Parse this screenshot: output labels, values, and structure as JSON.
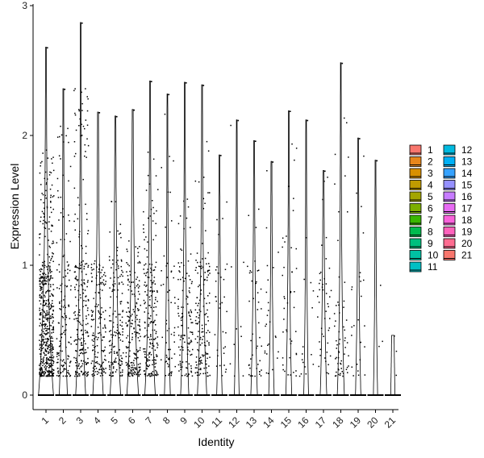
{
  "chart_data": {
    "type": "violin",
    "title": "",
    "xlabel": "Identity",
    "ylabel": "Expression Level",
    "ylim": [
      -0.15,
      3.0
    ],
    "yticks": [
      0,
      1,
      2,
      3
    ],
    "grid": false,
    "legend_position": "right",
    "categories": [
      "1",
      "2",
      "3",
      "4",
      "5",
      "6",
      "7",
      "8",
      "9",
      "10",
      "11",
      "12",
      "13",
      "14",
      "15",
      "16",
      "17",
      "18",
      "19",
      "20",
      "21"
    ],
    "colors": [
      "#F8766D",
      "#E58700",
      "#C99800",
      "#A3A500",
      "#6BB100",
      "#00BA38",
      "#00BF7D",
      "#00C0AF",
      "#00BCD8",
      "#00B0F6",
      "#619CFF",
      "#B983FF",
      "#E76BF3",
      "#FD61D1",
      "#FF67A4",
      "#F8766D",
      "#E58700",
      "#C99800",
      "#A3A500",
      "#6BB100",
      "#00BA38"
    ],
    "legend_colors": [
      "#F8766D",
      "#E7861B",
      "#D89000",
      "#C09B00",
      "#A3A500",
      "#7CAE00",
      "#39B600",
      "#00BB4E",
      "#00BF7D",
      "#00C1A3",
      "#00BFC4",
      "#00BAE0",
      "#00B0F6",
      "#35A2FF",
      "#9590FF",
      "#C77CFF",
      "#E76BF3",
      "#FA62DB",
      "#FF62BC",
      "#FF6C91",
      "#F8766D"
    ],
    "series": [
      {
        "name": "1",
        "max": 2.68,
        "density": 1.0,
        "upper_top": 1.9,
        "cells": 520
      },
      {
        "name": "2",
        "max": 2.36,
        "density": 0.4,
        "upper_top": 2.1,
        "cells": 150
      },
      {
        "name": "3",
        "max": 2.87,
        "density": 0.55,
        "upper_top": 2.4,
        "cells": 230
      },
      {
        "name": "4",
        "max": 2.18,
        "density": 0.6,
        "upper_top": 1.0,
        "cells": 150
      },
      {
        "name": "5",
        "max": 2.15,
        "density": 0.6,
        "upper_top": 1.5,
        "cells": 160
      },
      {
        "name": "6",
        "max": 2.2,
        "density": 0.7,
        "upper_top": 1.2,
        "cells": 190
      },
      {
        "name": "7",
        "max": 2.42,
        "density": 0.6,
        "upper_top": 1.9,
        "cells": 200
      },
      {
        "name": "8",
        "max": 2.32,
        "density": 0.2,
        "upper_top": 2.3,
        "cells": 60
      },
      {
        "name": "9",
        "max": 2.41,
        "density": 0.4,
        "upper_top": 1.6,
        "cells": 120
      },
      {
        "name": "10",
        "max": 2.39,
        "density": 0.5,
        "upper_top": 2.0,
        "cells": 150
      },
      {
        "name": "11",
        "max": 1.85,
        "density": 0.15,
        "upper_top": 1.8,
        "cells": 35
      },
      {
        "name": "12",
        "max": 2.12,
        "density": 0.1,
        "upper_top": 2.1,
        "cells": 10
      },
      {
        "name": "13",
        "max": 1.96,
        "density": 0.25,
        "upper_top": 1.5,
        "cells": 45
      },
      {
        "name": "14",
        "max": 1.8,
        "density": 0.15,
        "upper_top": 1.8,
        "cells": 25
      },
      {
        "name": "15",
        "max": 2.19,
        "density": 0.2,
        "upper_top": 2.2,
        "cells": 45
      },
      {
        "name": "16",
        "max": 2.12,
        "density": 0.1,
        "upper_top": 2.1,
        "cells": 15
      },
      {
        "name": "17",
        "max": 1.73,
        "density": 0.25,
        "upper_top": 1.7,
        "cells": 45
      },
      {
        "name": "18",
        "max": 2.56,
        "density": 0.3,
        "upper_top": 2.5,
        "cells": 60
      },
      {
        "name": "19",
        "max": 1.98,
        "density": 0.15,
        "upper_top": 1.9,
        "cells": 25
      },
      {
        "name": "20",
        "max": 1.81,
        "density": 0.05,
        "upper_top": 1.8,
        "cells": 3
      },
      {
        "name": "21",
        "max": 0.46,
        "density": 0.05,
        "upper_top": 0.45,
        "cells": 2
      }
    ]
  }
}
